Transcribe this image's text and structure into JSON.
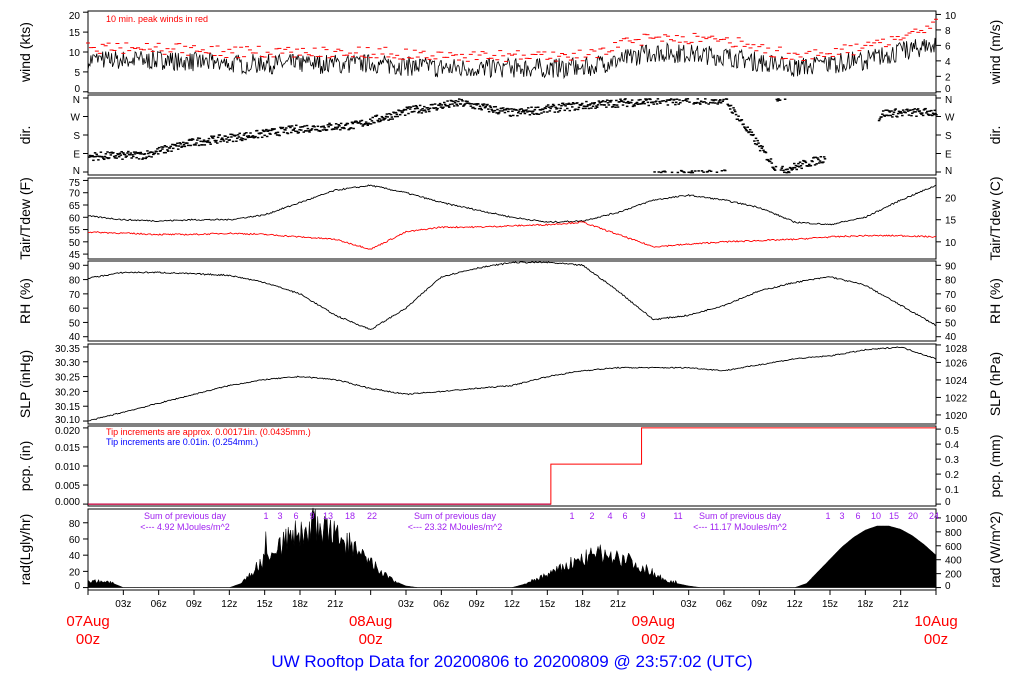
{
  "title": "UW Rooftop Data for 20200806  to  20200809 @ 23:57:02  (UTC)",
  "colors": {
    "peak": "#ff0000",
    "dew": "#ff0000",
    "pcp_new": "#ff0000",
    "pcp_old": "#0000ff",
    "rad_note": "#a020f0",
    "date": "#ff0000",
    "title": "#0000ff"
  },
  "chart_data": [
    {
      "type": "line",
      "name": "wind",
      "ylabel": "wind (kts)",
      "ylabel_right": "wind (m/s)",
      "ylim": [
        0,
        20
      ],
      "yticks": [
        0,
        5,
        10,
        15,
        20
      ],
      "yticks_right": [
        0,
        2,
        4,
        6,
        8,
        10
      ],
      "annotation": "10 min. peak winds in red",
      "x_hours_step": 6,
      "series": [
        {
          "name": "mean wind",
          "values": [
            8,
            8,
            7,
            7,
            7,
            6,
            6,
            6,
            10,
            9,
            6,
            8,
            12
          ]
        },
        {
          "name": "10 min peak",
          "values": [
            11,
            11,
            10,
            10,
            10,
            9,
            9,
            9,
            14,
            13,
            9,
            11,
            17
          ]
        }
      ]
    },
    {
      "type": "scatter",
      "name": "direction",
      "ylabel": "dir.",
      "ylabel_right": "dir.",
      "yticks": [
        "N",
        "E",
        "S",
        "W",
        "N"
      ],
      "x_hours_step": 6,
      "values_deg": [
        80,
        85,
        150,
        180,
        215,
        230,
        300,
        340,
        290,
        320,
        340,
        350,
        355,
        5,
        80,
        290,
        295
      ]
    },
    {
      "type": "line",
      "name": "temperature",
      "ylabel": "Tair/Tdew (F)",
      "ylabel_right": "Tair/Tdew (C)",
      "ylim": [
        43,
        76
      ],
      "yticks": [
        45,
        50,
        55,
        60,
        65,
        70,
        75
      ],
      "yticks_right": [
        10,
        15,
        20
      ],
      "x_hours_step": 3,
      "series": [
        {
          "name": "Tair",
          "values": [
            60.5,
            59,
            58.5,
            59,
            59,
            61,
            66,
            71,
            73,
            70,
            66,
            63,
            60,
            58,
            58.5,
            62,
            67,
            69,
            67,
            64,
            58,
            57,
            60,
            67,
            73
          ]
        },
        {
          "name": "Tdew",
          "values": [
            54,
            53.5,
            53,
            53,
            53.5,
            53,
            52,
            51,
            47,
            54,
            56,
            56,
            56.5,
            57,
            58,
            53,
            48,
            49,
            50,
            50.5,
            51,
            52,
            52.5,
            52.5,
            52
          ]
        }
      ]
    },
    {
      "type": "line",
      "name": "rh",
      "ylabel": "RH (%)",
      "ylabel_right": "RH (%)",
      "ylim": [
        37,
        93
      ],
      "yticks": [
        40,
        50,
        60,
        70,
        80,
        90
      ],
      "x_hours_step": 3,
      "values": [
        81,
        85,
        85,
        84,
        83,
        78,
        70,
        55,
        45,
        60,
        82,
        88,
        92,
        92,
        90,
        72,
        52,
        55,
        62,
        72,
        78,
        82,
        76,
        62,
        48
      ]
    },
    {
      "type": "line",
      "name": "slp",
      "ylabel": "SLP (inHg)",
      "ylabel_right": "SLP (hPa)",
      "ylim": [
        30.09,
        30.36
      ],
      "yticks": [
        "30.10",
        "30.15",
        "30.20",
        "30.25",
        "30.30",
        "30.35"
      ],
      "yticks_right": [
        1020,
        1022,
        1024,
        1026,
        1028
      ],
      "x_hours_step": 3,
      "values": [
        30.1,
        30.13,
        30.16,
        30.19,
        30.22,
        30.24,
        30.25,
        30.24,
        30.21,
        30.19,
        30.2,
        30.21,
        30.22,
        30.25,
        30.27,
        30.28,
        30.28,
        30.28,
        30.27,
        30.29,
        30.31,
        30.32,
        30.34,
        30.35,
        30.31
      ]
    },
    {
      "type": "line",
      "name": "precipitation",
      "ylabel": "pcp. (in)",
      "ylabel_right": "pcp. (mm)",
      "ylim": [
        0,
        0.02
      ],
      "yticks": [
        "0.000",
        "0.005",
        "0.010",
        "0.015",
        "0.020"
      ],
      "yticks_right": [
        0,
        0.1,
        0.2,
        0.3,
        0.4,
        0.5
      ],
      "notes": [
        "Tip increments are approx. 0.00171in. (0.0435mm.)",
        "Tip increments are 0.01in. (0.254mm.)"
      ],
      "steps": [
        [
          0,
          0
        ],
        [
          39.3,
          0.0105
        ],
        [
          47,
          0.02
        ],
        [
          72,
          0.02
        ]
      ]
    },
    {
      "type": "area",
      "name": "radiation",
      "ylabel": "rad(Lgly/hr)",
      "ylabel_right": "rad (W/m^2)",
      "ylim": [
        0,
        90
      ],
      "yticks": [
        0,
        20,
        40,
        60,
        80
      ],
      "yticks_right": [
        0,
        200,
        400,
        600,
        800,
        1000
      ],
      "x_hours_step": 1,
      "values": [
        8,
        8,
        6,
        0,
        0,
        0,
        0,
        0,
        0,
        0,
        0,
        0,
        0,
        5,
        20,
        35,
        50,
        60,
        68,
        72,
        70,
        65,
        55,
        42,
        30,
        18,
        8,
        2,
        0,
        0,
        0,
        0,
        0,
        0,
        0,
        0,
        0,
        4,
        10,
        16,
        22,
        30,
        35,
        40,
        42,
        38,
        33,
        25,
        18,
        10,
        5,
        2,
        0,
        0,
        0,
        0,
        0,
        0,
        0,
        0,
        0,
        5,
        20,
        35,
        50,
        62,
        71,
        76,
        76,
        72,
        64,
        53,
        40
      ],
      "day_notes": [
        {
          "line1": "Sum of previous day",
          "line2": "<--- 4.92 MJoules/m^2",
          "hours": [
            "1",
            "3",
            "6",
            "9",
            "13",
            "18",
            "22"
          ]
        },
        {
          "line1": "Sum of previous day",
          "line2": "<--- 23.32 MJoules/m^2",
          "hours": [
            "1",
            "2",
            "4",
            "6",
            "9",
            "11"
          ]
        },
        {
          "line1": "Sum of previous day",
          "line2": "<--- 11.17 MJoules/m^2",
          "hours": [
            "1",
            "3",
            "6",
            "10",
            "15",
            "20",
            "24"
          ]
        }
      ]
    }
  ],
  "xaxis": {
    "hour_labels": [
      "03z",
      "06z",
      "09z",
      "12z",
      "15z",
      "18z",
      "21z"
    ],
    "dates": [
      {
        "day": "07Aug",
        "hour": "00z"
      },
      {
        "day": "08Aug",
        "hour": "00z"
      },
      {
        "day": "09Aug",
        "hour": "00z"
      },
      {
        "day": "10Aug",
        "hour": "00z"
      }
    ]
  }
}
